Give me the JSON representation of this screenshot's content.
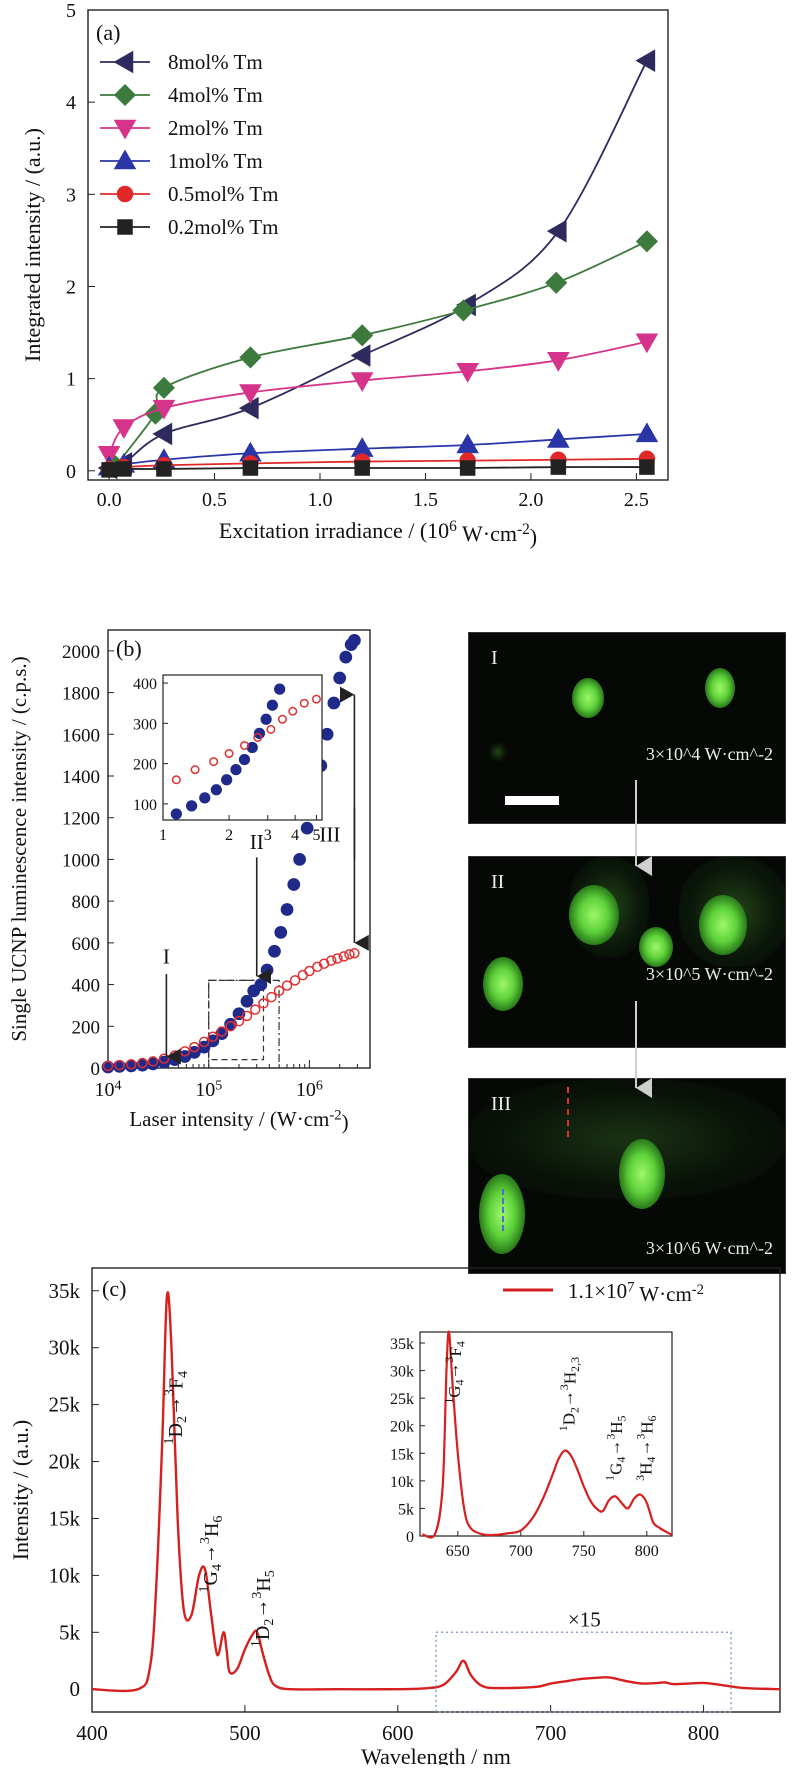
{
  "chart_data": [
    {
      "panel": "(a)",
      "type": "line",
      "xlabel": "Excitation irradiance / (10^6 W·cm^-2)",
      "ylabel": "Integrated intensity / (a.u.)",
      "xlim": [
        -0.1,
        2.65
      ],
      "ylim": [
        -0.1,
        5
      ],
      "xticks": [
        "0.0",
        "0.5",
        "1.0",
        "1.5",
        "2.0",
        "2.5"
      ],
      "yticks": [
        "0",
        "1",
        "2",
        "3",
        "4",
        "5"
      ],
      "legend_position": "top-left",
      "series": [
        {
          "name": "8mol% Tm",
          "marker": "triangle-left",
          "color": "#2e2a5e",
          "x": [
            0,
            0.07,
            0.26,
            0.67,
            1.2,
            1.7,
            2.13,
            2.55
          ],
          "y": [
            0.03,
            0.08,
            0.4,
            0.68,
            1.25,
            1.8,
            2.6,
            4.45
          ]
        },
        {
          "name": "4mol% Tm",
          "marker": "diamond",
          "color": "#3d7a3d",
          "x": [
            0.03,
            0.22,
            0.26,
            0.67,
            1.2,
            1.68,
            2.12,
            2.55
          ],
          "y": [
            0.05,
            0.62,
            0.9,
            1.23,
            1.47,
            1.74,
            2.04,
            2.49
          ]
        },
        {
          "name": "2mol% Tm",
          "marker": "triangle-down",
          "color": "#d6348b",
          "x": [
            0,
            0.07,
            0.26,
            0.67,
            1.2,
            1.7,
            2.13,
            2.55
          ],
          "y": [
            0.18,
            0.47,
            0.68,
            0.85,
            0.98,
            1.08,
            1.2,
            1.4
          ]
        },
        {
          "name": "1mol% Tm",
          "marker": "triangle-up",
          "color": "#2a36a8",
          "x": [
            0,
            0.07,
            0.26,
            0.67,
            1.2,
            1.7,
            2.13,
            2.55
          ],
          "y": [
            0.04,
            0.07,
            0.12,
            0.19,
            0.24,
            0.28,
            0.34,
            0.4
          ]
        },
        {
          "name": "0.5mol% Tm",
          "marker": "circle",
          "color": "#e02828",
          "x": [
            0,
            0.07,
            0.26,
            0.67,
            1.2,
            1.7,
            2.13,
            2.55
          ],
          "y": [
            0.02,
            0.04,
            0.06,
            0.08,
            0.1,
            0.11,
            0.12,
            0.13
          ]
        },
        {
          "name": "0.2mol% Tm",
          "marker": "square",
          "color": "#222222",
          "x": [
            0,
            0.07,
            0.26,
            0.67,
            1.2,
            1.7,
            2.13,
            2.55
          ],
          "y": [
            0.01,
            0.02,
            0.02,
            0.03,
            0.03,
            0.03,
            0.04,
            0.04
          ]
        }
      ]
    },
    {
      "panel": "(b)",
      "type": "scatter",
      "xlabel": "Laser intensity / (W·cm^-2)",
      "ylabel": "Single UCNP luminescence intensity / (c.p.s.)",
      "xscale": "log",
      "xlim": [
        10000,
        4000000
      ],
      "ylim": [
        0,
        2100
      ],
      "xticks": [
        10000,
        100000,
        1000000
      ],
      "yticks": [
        0,
        200,
        400,
        600,
        800,
        1000,
        1200,
        1400,
        1600,
        1800,
        2000
      ],
      "annotations": [
        "I",
        "II",
        "III"
      ],
      "series": [
        {
          "style": "filled-circle",
          "color": "#1f2a8a",
          "x": [
            10000,
            13000,
            17000,
            22000,
            28000,
            36000,
            46000,
            58000,
            72000,
            90000,
            110000,
            135000,
            165000,
            200000,
            240000,
            280000,
            330000,
            380000,
            450000,
            520000,
            600000,
            700000,
            800000,
            950000,
            1100000,
            1300000,
            1500000,
            1750000,
            2000000,
            2300000,
            2600000,
            2800000
          ],
          "y": [
            5,
            8,
            10,
            14,
            20,
            28,
            40,
            55,
            75,
            100,
            130,
            165,
            210,
            260,
            320,
            370,
            400,
            470,
            560,
            650,
            760,
            880,
            1000,
            1150,
            1300,
            1450,
            1600,
            1750,
            1870,
            1970,
            2030,
            2050
          ]
        },
        {
          "style": "open-circle",
          "color": "#e03030",
          "x": [
            10000,
            13000,
            17000,
            22000,
            28000,
            36000,
            46000,
            58000,
            72000,
            90000,
            110000,
            135000,
            165000,
            200000,
            240000,
            290000,
            350000,
            420000,
            500000,
            600000,
            720000,
            860000,
            1000000,
            1200000,
            1400000,
            1650000,
            1900000,
            2200000,
            2500000,
            2800000
          ],
          "y": [
            10,
            14,
            18,
            24,
            32,
            45,
            60,
            80,
            100,
            125,
            150,
            175,
            200,
            225,
            250,
            280,
            310,
            340,
            370,
            395,
            420,
            445,
            465,
            485,
            500,
            515,
            525,
            535,
            545,
            550
          ]
        }
      ],
      "inset": {
        "xlim": [
          1,
          5.3
        ],
        "ylim": [
          60,
          420
        ],
        "xticks": [
          "1",
          "2",
          "3",
          "4",
          "5"
        ],
        "yticks": [
          "100",
          "200",
          "300",
          "400"
        ],
        "series": [
          {
            "style": "filled-circle",
            "color": "#1f2a8a",
            "x": [
              1.15,
              1.35,
              1.55,
              1.75,
              1.95,
              2.15,
              2.35,
              2.55,
              2.75,
              2.95,
              3.15,
              3.4
            ],
            "y": [
              75,
              95,
              115,
              135,
              160,
              185,
              210,
              240,
              275,
              310,
              345,
              385
            ]
          },
          {
            "style": "open-circle",
            "color": "#e03030",
            "x": [
              1.15,
              1.4,
              1.7,
              2.0,
              2.35,
              2.7,
              3.1,
              3.5,
              3.9,
              4.4,
              5.0
            ],
            "y": [
              160,
              185,
              205,
              225,
              245,
              265,
              285,
              310,
              330,
              350,
              360
            ]
          }
        ]
      }
    },
    {
      "panel": "(c)",
      "type": "line",
      "xlabel": "Wavelength / nm",
      "ylabel": "Intensity / (a.u.)",
      "xlim": [
        400,
        850
      ],
      "ylim": [
        -2000,
        37000
      ],
      "xticks": [
        "400",
        "500",
        "600",
        "700",
        "800"
      ],
      "yticks": [
        "0",
        "5k",
        "10k",
        "15k",
        "20k",
        "25k",
        "30k",
        "35k"
      ],
      "legend": "1.1×10^7 W·cm^-2",
      "series": [
        {
          "name": "1.1×10^7 W·cm^-2",
          "color": "#d62020",
          "x": [
            400,
            430,
            438,
            442,
            446,
            449,
            452,
            456,
            460,
            465,
            470,
            474,
            478,
            482,
            486,
            488,
            490,
            495,
            500,
            505,
            508,
            512,
            516,
            520,
            530,
            560,
            600,
            620,
            630,
            638,
            643,
            648,
            655,
            665,
            690,
            700,
            710,
            720,
            730,
            735,
            740,
            750,
            760,
            770,
            775,
            780,
            790,
            800,
            810,
            820,
            830,
            850
          ],
          "y": [
            0,
            0,
            2000,
            9000,
            22000,
            34500,
            30000,
            15000,
            7000,
            6500,
            10000,
            10500,
            6500,
            3000,
            5000,
            3500,
            1500,
            1800,
            3500,
            4800,
            5000,
            3000,
            1200,
            300,
            0,
            0,
            0,
            100,
            400,
            1500,
            2500,
            1200,
            300,
            100,
            200,
            500,
            700,
            900,
            1000,
            1050,
            1000,
            700,
            500,
            550,
            600,
            450,
            500,
            550,
            400,
            200,
            80,
            0
          ]
        }
      ],
      "annotations": [
        "1D2→3F4",
        "1G4→3H6",
        "1D2→3H5",
        "×15"
      ],
      "inset": {
        "xlim": [
          620,
          820
        ],
        "ylim": [
          0,
          37000
        ],
        "xticks": [
          "650",
          "700",
          "750",
          "800"
        ],
        "yticks": [
          "0",
          "5k",
          "10k",
          "15k",
          "20k",
          "25k",
          "30k",
          "35k"
        ],
        "annotations": [
          "1G4→3F4",
          "1D2→3H2,3",
          "1G4→3H5",
          "3H4→3H6"
        ],
        "x": [
          622,
          632,
          638,
          641,
          643,
          646,
          650,
          655,
          660,
          670,
          680,
          690,
          700,
          710,
          718,
          725,
          730,
          735,
          740,
          745,
          750,
          755,
          760,
          765,
          770,
          775,
          780,
          785,
          790,
          795,
          800,
          805,
          810,
          815,
          820
        ],
        "y": [
          300,
          400,
          9000,
          30000,
          37000,
          27000,
          15000,
          5000,
          1500,
          300,
          200,
          500,
          1000,
          3500,
          7000,
          11000,
          14000,
          15500,
          14500,
          12000,
          9000,
          6500,
          5000,
          4500,
          6500,
          7200,
          6000,
          5000,
          6800,
          7500,
          6000,
          2500,
          1500,
          800,
          200
        ]
      }
    }
  ],
  "panel_b_images": {
    "labels": [
      "I",
      "II",
      "III"
    ],
    "irradiance": [
      "3×10^4 W·cm^-2",
      "3×10^5 W·cm^-2",
      "3×10^6 W·cm^-2"
    ]
  }
}
